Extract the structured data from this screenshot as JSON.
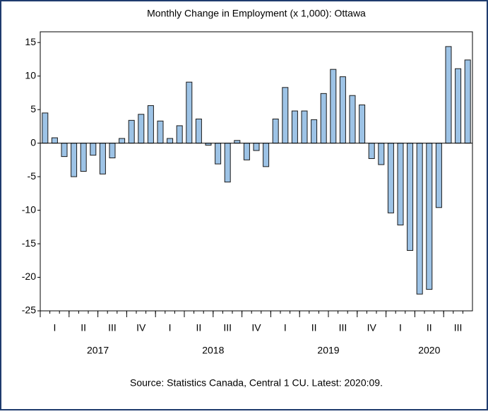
{
  "chart_data": {
    "type": "bar",
    "title": "Monthly Change in Employment (x 1,000): Ottawa",
    "source": "Source: Statistics Canada, Central 1 CU. Latest: 2020:09.",
    "values": [
      4.5,
      0.8,
      -2.0,
      -5.0,
      -4.2,
      -1.8,
      -4.6,
      -2.2,
      0.7,
      3.4,
      4.3,
      5.6,
      3.3,
      0.7,
      2.6,
      9.1,
      3.6,
      -0.3,
      -3.1,
      -5.8,
      0.4,
      -2.5,
      -1.1,
      -3.5,
      3.6,
      8.3,
      4.8,
      4.8,
      3.5,
      7.4,
      11.0,
      9.9,
      7.1,
      5.7,
      -2.3,
      -3.2,
      -10.4,
      -12.2,
      -16.0,
      -22.5,
      -21.8,
      -9.6,
      14.4,
      11.1,
      12.4
    ],
    "quarters": [
      "I",
      "II",
      "III",
      "IV",
      "I",
      "II",
      "III",
      "IV",
      "I",
      "II",
      "III",
      "IV",
      "I",
      "II",
      "III"
    ],
    "years": [
      "2017",
      "2018",
      "2019",
      "2020"
    ],
    "color": "#9dc3e6",
    "ylim": [
      -25,
      16.6
    ],
    "yticks": [
      15,
      10,
      5,
      0,
      -5,
      -10,
      -15,
      -20,
      -25
    ]
  }
}
